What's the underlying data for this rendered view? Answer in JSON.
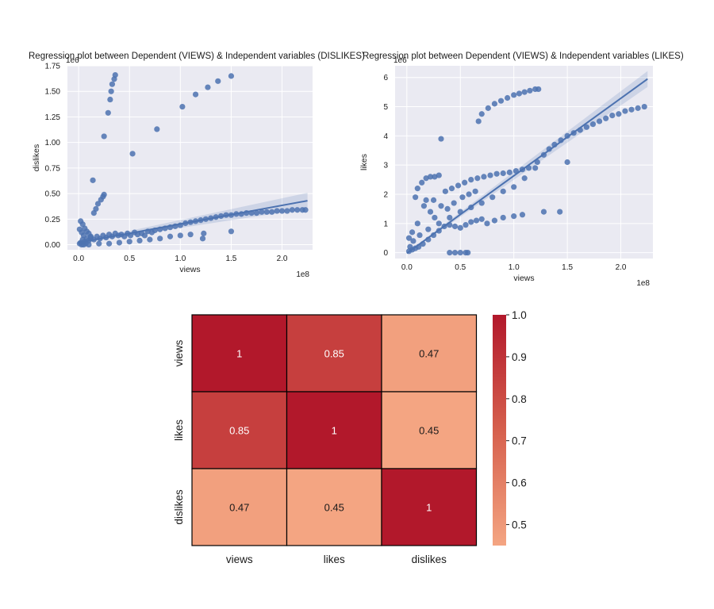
{
  "chart_data": [
    {
      "type": "scatter",
      "title": "Regression plot between Dependent (VIEWS) & Independent variables (DISLIKES)",
      "xlabel": "views",
      "ylabel": "dislikes",
      "x_offset_label": "1e8",
      "y_offset_label": "1e6",
      "x_ticks": [
        "0.0",
        "0.5",
        "1.0",
        "1.5",
        "2.0"
      ],
      "y_ticks": [
        "0.00",
        "0.25",
        "0.50",
        "0.75",
        "1.00",
        "1.25",
        "1.50",
        "1.75"
      ],
      "xlim": [
        -0.11,
        2.3
      ],
      "ylim": [
        -0.05,
        1.75
      ],
      "grid": true,
      "point_color": "#4c72b0",
      "points": [
        [
          0.36,
          1.66
        ],
        [
          0.35,
          1.62
        ],
        [
          0.33,
          1.57
        ],
        [
          0.32,
          1.5
        ],
        [
          0.31,
          1.42
        ],
        [
          0.29,
          1.29
        ],
        [
          0.25,
          1.06
        ],
        [
          0.53,
          0.89
        ],
        [
          0.77,
          1.13
        ],
        [
          1.02,
          1.35
        ],
        [
          1.15,
          1.47
        ],
        [
          1.27,
          1.54
        ],
        [
          1.37,
          1.6
        ],
        [
          1.5,
          1.65
        ],
        [
          0.14,
          0.63
        ],
        [
          0.25,
          0.49
        ],
        [
          0.24,
          0.47
        ],
        [
          0.22,
          0.44
        ],
        [
          0.19,
          0.4
        ],
        [
          0.17,
          0.35
        ],
        [
          0.15,
          0.31
        ],
        [
          0.02,
          0.23
        ],
        [
          0.04,
          0.2
        ],
        [
          0.06,
          0.16
        ],
        [
          0.08,
          0.13
        ],
        [
          0.1,
          0.11
        ],
        [
          0.12,
          0.08
        ],
        [
          0.02,
          0.02
        ],
        [
          0.04,
          0.05
        ],
        [
          0.06,
          0.03
        ],
        [
          0.08,
          0.06
        ],
        [
          0.1,
          0.04
        ],
        [
          0.12,
          0.07
        ],
        [
          0.15,
          0.05
        ],
        [
          0.18,
          0.08
        ],
        [
          0.21,
          0.06
        ],
        [
          0.24,
          0.09
        ],
        [
          0.27,
          0.07
        ],
        [
          0.3,
          0.1
        ],
        [
          0.33,
          0.08
        ],
        [
          0.36,
          0.11
        ],
        [
          0.39,
          0.09
        ],
        [
          0.42,
          0.1
        ],
        [
          0.45,
          0.08
        ],
        [
          0.48,
          0.11
        ],
        [
          0.51,
          0.09
        ],
        [
          0.55,
          0.12
        ],
        [
          0.58,
          0.1
        ],
        [
          0.62,
          0.11
        ],
        [
          0.65,
          0.09
        ],
        [
          0.68,
          0.13
        ],
        [
          0.72,
          0.12
        ],
        [
          0.75,
          0.14
        ],
        [
          0.8,
          0.15
        ],
        [
          0.85,
          0.16
        ],
        [
          0.9,
          0.17
        ],
        [
          0.95,
          0.18
        ],
        [
          1.0,
          0.19
        ],
        [
          1.05,
          0.21
        ],
        [
          1.1,
          0.22
        ],
        [
          1.15,
          0.23
        ],
        [
          1.2,
          0.24
        ],
        [
          1.25,
          0.25
        ],
        [
          1.3,
          0.26
        ],
        [
          1.35,
          0.27
        ],
        [
          1.4,
          0.28
        ],
        [
          1.45,
          0.29
        ],
        [
          1.5,
          0.29
        ],
        [
          1.55,
          0.3
        ],
        [
          1.6,
          0.3
        ],
        [
          1.65,
          0.31
        ],
        [
          1.7,
          0.31
        ],
        [
          1.75,
          0.31
        ],
        [
          1.8,
          0.32
        ],
        [
          1.85,
          0.32
        ],
        [
          1.9,
          0.32
        ],
        [
          1.95,
          0.33
        ],
        [
          2.0,
          0.33
        ],
        [
          2.05,
          0.33
        ],
        [
          2.1,
          0.34
        ],
        [
          2.15,
          0.34
        ],
        [
          2.2,
          0.34
        ],
        [
          2.23,
          0.34
        ],
        [
          0.4,
          0.02
        ],
        [
          0.5,
          0.03
        ],
        [
          0.6,
          0.04
        ],
        [
          0.7,
          0.05
        ],
        [
          0.8,
          0.06
        ],
        [
          0.9,
          0.08
        ],
        [
          1.0,
          0.09
        ],
        [
          1.1,
          0.1
        ],
        [
          1.22,
          0.06
        ],
        [
          1.23,
          0.11
        ],
        [
          1.5,
          0.13
        ],
        [
          0.3,
          0.01
        ],
        [
          0.2,
          0.01
        ],
        [
          0.1,
          0.0
        ],
        [
          0.05,
          0.0
        ],
        [
          0.01,
          0.01
        ],
        [
          0.03,
          0.0
        ],
        [
          0.07,
          0.01
        ],
        [
          0.01,
          0.15
        ],
        [
          0.03,
          0.12
        ],
        [
          0.05,
          0.09
        ]
      ],
      "regression": {
        "x": [
          0.0,
          2.25
        ],
        "y": [
          0.02,
          0.43
        ]
      }
    },
    {
      "type": "scatter",
      "title": "Regression plot between Dependent (VIEWS) & Independent variables (LIKES)",
      "xlabel": "views",
      "ylabel": "likes",
      "x_offset_label": "1e8",
      "y_offset_label": "1e6",
      "x_ticks": [
        "0.0",
        "0.5",
        "1.0",
        "1.5",
        "2.0"
      ],
      "y_ticks": [
        "0",
        "1",
        "2",
        "3",
        "4",
        "5",
        "6"
      ],
      "xlim": [
        -0.11,
        2.3
      ],
      "ylim": [
        -0.2,
        6.4
      ],
      "grid": true,
      "point_color": "#4c72b0",
      "points": [
        [
          0.32,
          3.9
        ],
        [
          0.67,
          4.5
        ],
        [
          0.7,
          4.75
        ],
        [
          0.76,
          4.95
        ],
        [
          0.82,
          5.1
        ],
        [
          0.88,
          5.2
        ],
        [
          0.94,
          5.3
        ],
        [
          1.0,
          5.4
        ],
        [
          1.05,
          5.45
        ],
        [
          1.1,
          5.5
        ],
        [
          1.15,
          5.55
        ],
        [
          1.2,
          5.6
        ],
        [
          1.23,
          5.6
        ],
        [
          1.22,
          3.1
        ],
        [
          1.28,
          3.35
        ],
        [
          1.33,
          3.55
        ],
        [
          1.38,
          3.7
        ],
        [
          1.44,
          3.85
        ],
        [
          1.5,
          4.0
        ],
        [
          1.56,
          4.1
        ],
        [
          1.62,
          4.2
        ],
        [
          1.68,
          4.3
        ],
        [
          1.74,
          4.4
        ],
        [
          1.8,
          4.5
        ],
        [
          1.86,
          4.6
        ],
        [
          1.92,
          4.7
        ],
        [
          1.98,
          4.75
        ],
        [
          2.04,
          4.85
        ],
        [
          2.1,
          4.9
        ],
        [
          2.16,
          4.95
        ],
        [
          2.22,
          5.0
        ],
        [
          1.5,
          3.1
        ],
        [
          0.08,
          1.9
        ],
        [
          0.1,
          2.2
        ],
        [
          0.14,
          2.4
        ],
        [
          0.18,
          2.55
        ],
        [
          0.22,
          2.6
        ],
        [
          0.26,
          2.6
        ],
        [
          0.3,
          2.65
        ],
        [
          0.36,
          2.1
        ],
        [
          0.42,
          2.2
        ],
        [
          0.48,
          2.3
        ],
        [
          0.54,
          2.4
        ],
        [
          0.6,
          2.5
        ],
        [
          0.66,
          2.55
        ],
        [
          0.72,
          2.6
        ],
        [
          0.78,
          2.65
        ],
        [
          0.84,
          2.7
        ],
        [
          0.9,
          2.72
        ],
        [
          0.96,
          2.75
        ],
        [
          1.02,
          2.8
        ],
        [
          1.08,
          2.85
        ],
        [
          1.14,
          2.9
        ],
        [
          1.2,
          2.9
        ],
        [
          1.1,
          2.55
        ],
        [
          1.0,
          2.25
        ],
        [
          0.9,
          2.1
        ],
        [
          0.8,
          1.9
        ],
        [
          0.7,
          1.7
        ],
        [
          0.6,
          1.55
        ],
        [
          0.5,
          1.4
        ],
        [
          0.4,
          1.2
        ],
        [
          0.3,
          1.0
        ],
        [
          0.2,
          0.8
        ],
        [
          0.12,
          0.6
        ],
        [
          0.06,
          0.4
        ],
        [
          0.03,
          0.2
        ],
        [
          0.02,
          0.05
        ],
        [
          0.05,
          0.1
        ],
        [
          0.08,
          0.15
        ],
        [
          0.11,
          0.2
        ],
        [
          0.15,
          0.3
        ],
        [
          0.2,
          0.45
        ],
        [
          0.25,
          0.6
        ],
        [
          0.3,
          0.75
        ],
        [
          0.35,
          0.9
        ],
        [
          0.4,
          0.95
        ],
        [
          0.45,
          0.9
        ],
        [
          0.5,
          0.85
        ],
        [
          0.55,
          0.95
        ],
        [
          0.6,
          1.05
        ],
        [
          0.65,
          1.1
        ],
        [
          0.7,
          1.15
        ],
        [
          0.75,
          1.0
        ],
        [
          0.82,
          1.1
        ],
        [
          0.9,
          1.2
        ],
        [
          1.0,
          1.25
        ],
        [
          1.08,
          1.3
        ],
        [
          1.28,
          1.4
        ],
        [
          1.43,
          1.4
        ],
        [
          0.4,
          0.0
        ],
        [
          0.45,
          0.0
        ],
        [
          0.5,
          0.0
        ],
        [
          0.55,
          0.0
        ],
        [
          0.57,
          0.0
        ],
        [
          0.16,
          1.6
        ],
        [
          0.18,
          1.8
        ],
        [
          0.22,
          1.4
        ],
        [
          0.26,
          1.2
        ],
        [
          0.1,
          1.0
        ],
        [
          0.05,
          0.7
        ],
        [
          0.02,
          0.5
        ],
        [
          0.25,
          1.8
        ],
        [
          0.32,
          1.6
        ],
        [
          0.38,
          1.5
        ],
        [
          0.44,
          1.7
        ],
        [
          0.52,
          1.9
        ],
        [
          0.58,
          2.0
        ],
        [
          0.64,
          2.1
        ]
      ],
      "regression": {
        "x": [
          0.0,
          2.25
        ],
        "y": [
          -0.02,
          5.95
        ]
      }
    },
    {
      "type": "heatmap",
      "row_labels": [
        "views",
        "likes",
        "dislikes"
      ],
      "col_labels": [
        "views",
        "likes",
        "dislikes"
      ],
      "values": [
        [
          1,
          0.85,
          0.47
        ],
        [
          0.85,
          1,
          0.45
        ],
        [
          0.47,
          0.45,
          1
        ]
      ],
      "value_labels": [
        [
          "1",
          "0.85",
          "0.47"
        ],
        [
          "0.85",
          "1",
          "0.45"
        ],
        [
          "0.47",
          "0.45",
          "1"
        ]
      ],
      "colorbar_ticks": [
        "1.0",
        "0.9",
        "0.8",
        "0.7",
        "0.6",
        "0.5"
      ],
      "colorbar_range": [
        0.45,
        1.0
      ],
      "color_low": "#f4a582",
      "color_mid": "#d6604d",
      "color_high": "#b2182b"
    }
  ]
}
